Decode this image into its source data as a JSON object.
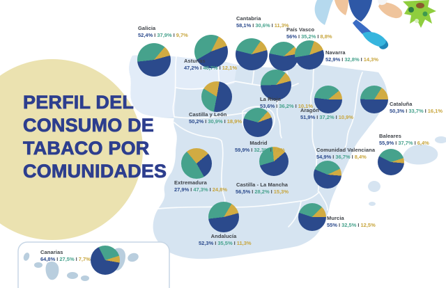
{
  "title": {
    "lines": [
      "PERFIL DEL",
      "CONSUMO DE",
      "TABACO POR",
      "COMUNIDADES"
    ]
  },
  "separator": "I",
  "colors": {
    "navy": "#2b4a8c",
    "teal": "#46a28c",
    "yellow": "#d1ab42",
    "value_colors": [
      "#2b4a8c",
      "#46a28c",
      "#c7a53c"
    ],
    "region_name": "#3c4046",
    "separator_color": "#4a4e55",
    "title": "#2d3e8e",
    "title_circle": "#ebe2b0",
    "map_fill": "#d6e4f1",
    "map_fill_light": "#e2ecf8",
    "map_border": "#ffffff",
    "islands": "#b9cede",
    "canarias_box_border": "#c7d6e5",
    "canarias_box_fill": "#ffffff"
  },
  "chart_data": {
    "type": "pie",
    "title": "Perfil del consumo de tabaco por comunidades",
    "legend_position": "none",
    "note": "Each region shows three percentages rendered navy / teal / yellow",
    "series": [
      {
        "name": "Galicia",
        "values_text": [
          "52,4%",
          "37,9%",
          "9,7%"
        ],
        "values": [
          52.4,
          37.9,
          9.7
        ]
      },
      {
        "name": "Asturias",
        "values_text": [
          "47,2%",
          "40,7%",
          "12,1%"
        ],
        "values": [
          47.2,
          40.7,
          12.1
        ]
      },
      {
        "name": "Cantabria",
        "values_text": [
          "58,1%",
          "30,6%",
          "11,3%"
        ],
        "values": [
          58.1,
          30.6,
          11.3
        ]
      },
      {
        "name": "País Vasco",
        "values_text": [
          "56%",
          "35,2%",
          "8,8%"
        ],
        "values": [
          56,
          35.2,
          8.8
        ]
      },
      {
        "name": "Navarra",
        "values_text": [
          "52,9%",
          "32,8%",
          "14,3%"
        ],
        "values": [
          52.9,
          32.8,
          14.3
        ]
      },
      {
        "name": "La Rioja",
        "values_text": [
          "53,6%",
          "36,2%",
          "10,1%"
        ],
        "values": [
          53.6,
          36.2,
          10.1
        ]
      },
      {
        "name": "Castilla y León",
        "values_text": [
          "50,2%",
          "30,9%",
          "18,9%"
        ],
        "values": [
          50.2,
          30.9,
          18.9
        ]
      },
      {
        "name": "Aragón",
        "values_text": [
          "51,9%",
          "37,2%",
          "10,9%"
        ],
        "values": [
          51.9,
          37.2,
          10.9
        ]
      },
      {
        "name": "Cataluña",
        "values_text": [
          "50,3%",
          "33,7%",
          "16,1%"
        ],
        "values": [
          50.3,
          33.7,
          16.1
        ]
      },
      {
        "name": "Madrid",
        "values_text": [
          "59,9%",
          "32,3%",
          "7,8%"
        ],
        "values": [
          59.9,
          32.3,
          7.8
        ]
      },
      {
        "name": "Extremadura",
        "values_text": [
          "27,9%",
          "47,3%",
          "24,8%"
        ],
        "values": [
          27.9,
          47.3,
          24.8
        ]
      },
      {
        "name": "Castilla - La Mancha",
        "values_text": [
          "56,5%",
          "28,2%",
          "15,3%"
        ],
        "values": [
          56.5,
          28.2,
          15.3
        ]
      },
      {
        "name": "Comunidad Valenciana",
        "values_text": [
          "54,9%",
          "36,7%",
          "8,4%"
        ],
        "values": [
          54.9,
          36.7,
          8.4
        ]
      },
      {
        "name": "Baleares",
        "values_text": [
          "55,9%",
          "37,7%",
          "6,4%"
        ],
        "values": [
          55.9,
          37.7,
          6.4
        ]
      },
      {
        "name": "Murcia",
        "values_text": [
          "55%",
          "32,5%",
          "12,5%"
        ],
        "values": [
          55,
          32.5,
          12.5
        ]
      },
      {
        "name": "Andalucía",
        "values_text": [
          "52,3%",
          "35,5%",
          "11,3%"
        ],
        "values": [
          52.3,
          35.5,
          11.3
        ]
      },
      {
        "name": "Canarias",
        "values_text": [
          "64,8%",
          "27,5%",
          "7,7%"
        ],
        "values": [
          64.8,
          27.5,
          7.7
        ]
      }
    ]
  },
  "regions": [
    {
      "id": "galicia",
      "name": "Galicia",
      "values": [
        "52,4%",
        "37,9%",
        "9,7%"
      ]
    },
    {
      "id": "asturias",
      "name": "Asturias",
      "values": [
        "47,2%",
        "40,7%",
        "12,1%"
      ]
    },
    {
      "id": "cantabria",
      "name": "Cantabria",
      "values": [
        "58,1%",
        "30,6%",
        "11,3%"
      ]
    },
    {
      "id": "pais_vasco",
      "name": "País Vasco",
      "values": [
        "56%",
        "35,2%",
        "8,8%"
      ]
    },
    {
      "id": "navarra",
      "name": "Navarra",
      "values": [
        "52,9%",
        "32,8%",
        "14,3%"
      ]
    },
    {
      "id": "la_rioja",
      "name": "La Rioja",
      "values": [
        "53,6%",
        "36,2%",
        "10,1%"
      ]
    },
    {
      "id": "castilla_y_leon",
      "name": "Castilla y León",
      "values": [
        "50,2%",
        "30,9%",
        "18,9%"
      ]
    },
    {
      "id": "aragon",
      "name": "Aragón",
      "values": [
        "51,9%",
        "37,2%",
        "10,9%"
      ]
    },
    {
      "id": "cataluna",
      "name": "Cataluña",
      "values": [
        "50,3%",
        "33,7%",
        "16,1%"
      ]
    },
    {
      "id": "madrid",
      "name": "Madrid",
      "values": [
        "59,9%",
        "32,3%",
        "7,8%"
      ]
    },
    {
      "id": "extremadura",
      "name": "Extremadura",
      "values": [
        "27,9%",
        "47,3%",
        "24,8%"
      ]
    },
    {
      "id": "castilla_la_mancha",
      "name": "Castilla - La Mancha",
      "values": [
        "56,5%",
        "28,2%",
        "15,3%"
      ]
    },
    {
      "id": "comunidad_valenciana",
      "name": "Comunidad Valenciana",
      "values": [
        "54,9%",
        "36,7%",
        "8,4%"
      ]
    },
    {
      "id": "baleares",
      "name": "Baleares",
      "values": [
        "55,9%",
        "37,7%",
        "6,4%"
      ]
    },
    {
      "id": "murcia",
      "name": "Murcia",
      "values": [
        "55%",
        "32,5%",
        "12,5%"
      ]
    },
    {
      "id": "andalucia",
      "name": "Andalucía",
      "values": [
        "52,3%",
        "35,5%",
        "11,3%"
      ]
    },
    {
      "id": "canarias",
      "name": "Canarias",
      "values": [
        "64,8%",
        "27,5%",
        "7,7%"
      ]
    }
  ]
}
